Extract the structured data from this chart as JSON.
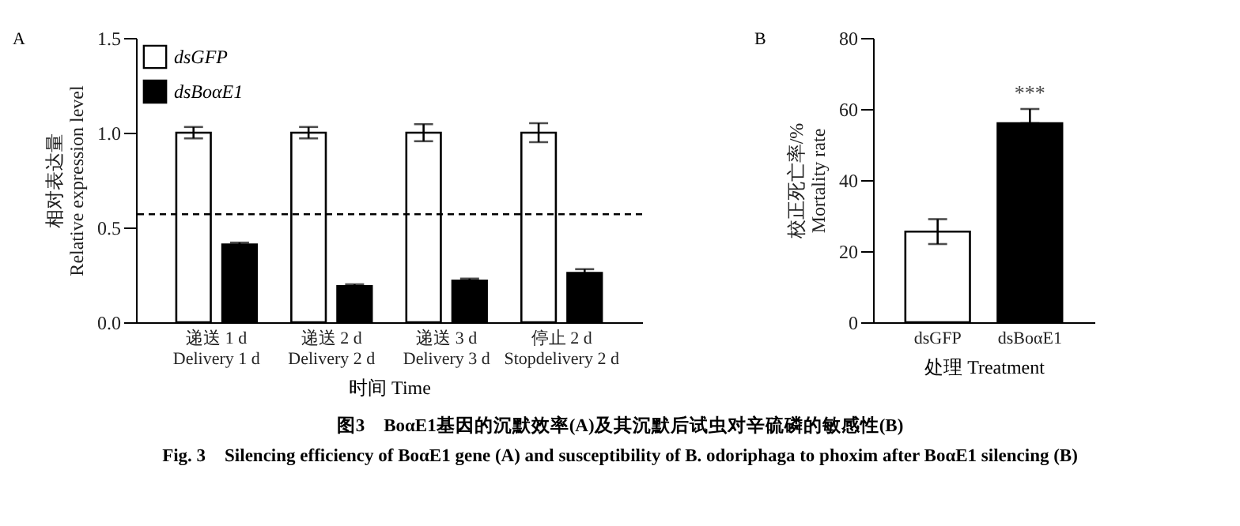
{
  "chart_data": [
    {
      "type": "bar",
      "title": "A",
      "xlabel": "时间 Time",
      "ylabel": "相对表达量\nRelative expression level",
      "categories": [
        "递送 1 d\nDelivery 1 d",
        "递送 2 d\nDelivery 2 d",
        "递送 3 d\nDelivery 3 d",
        "停止 2 d\nStopdelivery 2 d"
      ],
      "series": [
        {
          "name": "dsGFP",
          "color": "#ffffff",
          "values": [
            1.0,
            1.0,
            1.0,
            1.0
          ],
          "errors": [
            0.03,
            0.03,
            0.045,
            0.05
          ]
        },
        {
          "name": "dsBoαE1",
          "color": "#000000",
          "values": [
            0.41,
            0.19,
            0.22,
            0.26
          ],
          "errors": [
            0.01,
            0.01,
            0.01,
            0.02
          ]
        }
      ],
      "ylim": [
        0,
        1.5
      ],
      "yticks": [
        {
          "value": 0,
          "label": "0.0"
        },
        {
          "value": 0.5,
          "label": "0.5"
        },
        {
          "value": 1,
          "label": "1.0"
        },
        {
          "value": 1.5,
          "label": "1.5"
        }
      ],
      "ref_lines": [
        {
          "axis": "y",
          "value": 0.57,
          "line_style": "dashed"
        }
      ],
      "legend": "top left",
      "annotations": [
        "图3　BoαE1基因的沉默效率(A)及其沉默后试虫对辛硫磷的敏感性(B)",
        "Fig. 3　Silencing efficiency of BoαE1 gene (A) and susceptibility of B. odoriphaga to phoxim after BoαE1 silencing (B)"
      ]
    },
    {
      "type": "bar",
      "title": "B",
      "xlabel": "处理 Treatment",
      "ylabel": "校正死亡率/%\nMortality rate",
      "categories": [
        "dsGFP",
        "dsBoαE1"
      ],
      "values": [
        25.5,
        56
      ],
      "colors": [
        "#ffffff",
        "#000000"
      ],
      "errors": [
        3.5,
        [
          56,
          60
        ]
      ],
      "ylim": [
        0,
        80
      ],
      "yticks": [
        0,
        20,
        40,
        60,
        80
      ],
      "annotations": [
        "***"
      ]
    }
  ]
}
